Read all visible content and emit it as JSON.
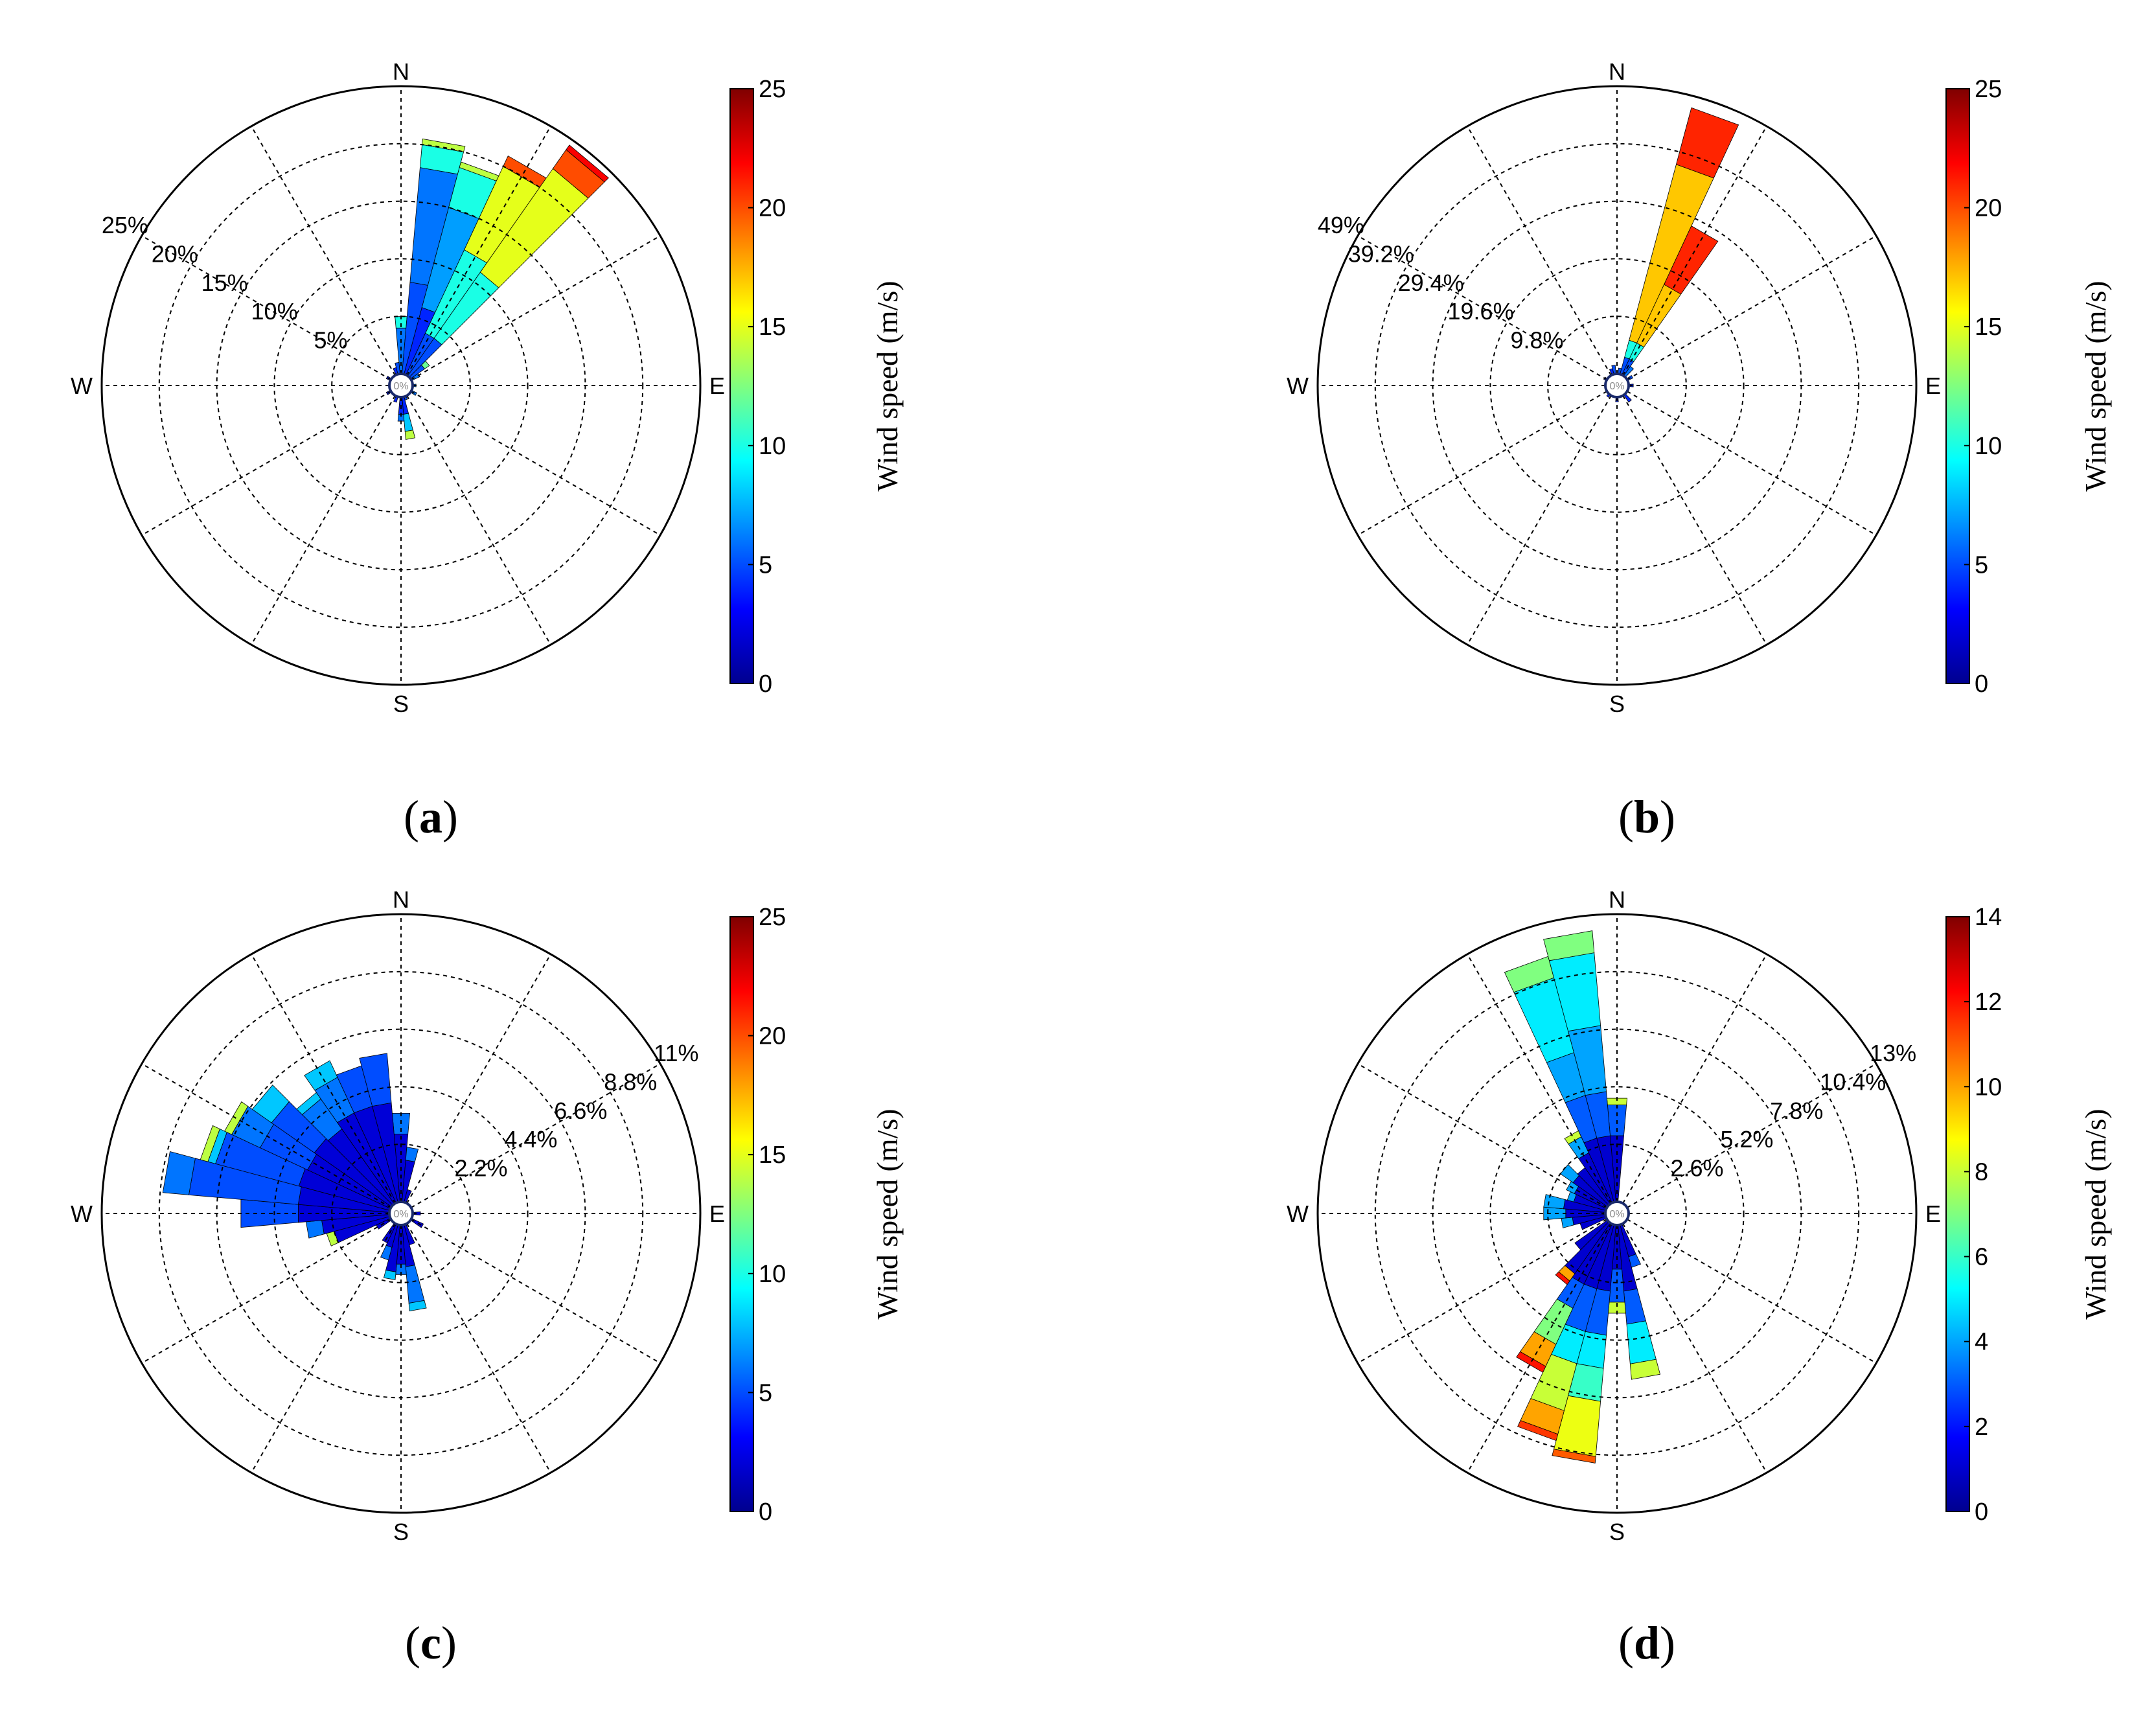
{
  "chart_data": [
    {
      "type": "windrose",
      "panel_label": "a",
      "rings": [
        "5%",
        "10%",
        "15%",
        "20%",
        "25%"
      ],
      "r_max": 25,
      "center_label": "0%",
      "directions": [
        "N",
        "E",
        "S",
        "W"
      ],
      "colorbar": {
        "title": "Wind speed (m/s)",
        "min": 0,
        "max": 25,
        "ticks": [
          "0",
          "5",
          "10",
          "15",
          "20",
          "25"
        ]
      },
      "sectors": [
        {
          "dir": 0,
          "bins": [
            [
              4,
              6
            ],
            [
              1,
              10
            ]
          ]
        },
        {
          "dir": 10,
          "bins": [
            [
              8,
              5
            ],
            [
              10,
              6
            ],
            [
              2,
              10
            ],
            [
              0.5,
              14
            ]
          ]
        },
        {
          "dir": 20,
          "bins": [
            [
              6,
              4
            ],
            [
              9,
              7
            ],
            [
              3.6,
              10
            ],
            [
              0.5,
              14
            ]
          ]
        },
        {
          "dir": 30,
          "bins": [
            [
              4,
              5
            ],
            [
              8,
              10
            ],
            [
              8,
              15
            ],
            [
              1,
              20
            ]
          ]
        },
        {
          "dir": 40,
          "bins": [
            [
              4,
              5
            ],
            [
              7,
              10
            ],
            [
              11,
              15
            ],
            [
              2,
              20
            ],
            [
              0.5,
              22
            ]
          ]
        },
        {
          "dir": 50,
          "bins": [
            [
              1.5,
              5
            ],
            [
              0.5,
              12
            ]
          ]
        },
        {
          "dir": 60,
          "bins": [
            [
              0.8,
              6
            ]
          ]
        },
        {
          "dir": 90,
          "bins": [
            [
              0.3,
              6
            ]
          ]
        },
        {
          "dir": 120,
          "bins": [
            [
              0.5,
              6
            ]
          ]
        },
        {
          "dir": 160,
          "bins": [
            [
              0.3,
              5
            ]
          ]
        },
        {
          "dir": 170,
          "bins": [
            [
              1.5,
              4
            ],
            [
              1.5,
              8
            ],
            [
              0.7,
              14
            ]
          ]
        },
        {
          "dir": 180,
          "bins": [
            [
              1.5,
              4
            ],
            [
              0.6,
              6
            ]
          ]
        },
        {
          "dir": 200,
          "bins": [
            [
              0.5,
              4
            ]
          ]
        },
        {
          "dir": 240,
          "bins": [
            [
              0.4,
              4
            ]
          ]
        },
        {
          "dir": 300,
          "bins": [
            [
              0.4,
              4
            ]
          ]
        },
        {
          "dir": 340,
          "bins": [
            [
              0.6,
              4
            ]
          ]
        },
        {
          "dir": 350,
          "bins": [
            [
              1,
              5
            ]
          ]
        }
      ]
    },
    {
      "type": "windrose",
      "panel_label": "b",
      "rings": [
        "9.8%",
        "19.6%",
        "29.4%",
        "39.2%",
        "49%"
      ],
      "r_max": 49,
      "center_label": "0%",
      "directions": [
        "N",
        "E",
        "S",
        "W"
      ],
      "colorbar": {
        "title": "Wind speed (m/s)",
        "min": 0,
        "max": 25,
        "ticks": [
          "0",
          "5",
          "10",
          "15",
          "20",
          "25"
        ]
      },
      "sectors": [
        {
          "dir": 10,
          "bins": [
            [
              1,
              5
            ]
          ]
        },
        {
          "dir": 20,
          "bins": [
            [
              3,
              5
            ],
            [
              3,
              10
            ],
            [
              31,
              17
            ],
            [
              10,
              21
            ]
          ]
        },
        {
          "dir": 30,
          "bins": [
            [
              3,
              5
            ],
            [
              3,
              10
            ],
            [
              11,
              17
            ],
            [
              11,
              21
            ]
          ]
        },
        {
          "dir": 40,
          "bins": [
            [
              2,
              6
            ]
          ]
        },
        {
          "dir": 60,
          "bins": [
            [
              1,
              5
            ]
          ]
        },
        {
          "dir": 90,
          "bins": [
            [
              0.8,
              4
            ]
          ]
        },
        {
          "dir": 140,
          "bins": [
            [
              1.5,
              4
            ]
          ]
        },
        {
          "dir": 180,
          "bins": [
            [
              0.8,
              4
            ]
          ]
        },
        {
          "dir": 220,
          "bins": [
            [
              0.5,
              4
            ]
          ]
        },
        {
          "dir": 300,
          "bins": [
            [
              0.5,
              4
            ]
          ]
        },
        {
          "dir": 340,
          "bins": [
            [
              1,
              4
            ]
          ]
        },
        {
          "dir": 350,
          "bins": [
            [
              1.5,
              5
            ]
          ]
        }
      ]
    },
    {
      "type": "windrose",
      "panel_label": "c",
      "rings": [
        "2.2%",
        "4.4%",
        "6.6%",
        "8.8%",
        "11%"
      ],
      "r_max": 11,
      "center_label": "0%",
      "directions": [
        "N",
        "E",
        "S",
        "W"
      ],
      "colorbar": {
        "title": "Wind speed (m/s)",
        "min": 0,
        "max": 25,
        "ticks": [
          "0",
          "5",
          "10",
          "15",
          "20",
          "25"
        ]
      },
      "sectors": [
        {
          "dir": 0,
          "bins": [
            [
              2.6,
              2
            ],
            [
              0.8,
              6
            ]
          ]
        },
        {
          "dir": 10,
          "bins": [
            [
              1.6,
              2
            ],
            [
              0.5,
              6
            ]
          ]
        },
        {
          "dir": 20,
          "bins": [
            [
              0.5,
              2
            ]
          ]
        },
        {
          "dir": 90,
          "bins": [
            [
              0.3,
              2
            ]
          ]
        },
        {
          "dir": 120,
          "bins": [
            [
              0.5,
              2
            ]
          ]
        },
        {
          "dir": 160,
          "bins": [
            [
              0.8,
              2
            ]
          ]
        },
        {
          "dir": 170,
          "bins": [
            [
              1.6,
              2
            ],
            [
              1.4,
              6
            ],
            [
              0.3,
              8
            ]
          ]
        },
        {
          "dir": 180,
          "bins": [
            [
              1.5,
              2
            ],
            [
              0.4,
              6
            ]
          ]
        },
        {
          "dir": 190,
          "bins": [
            [
              1.8,
              2
            ],
            [
              0.3,
              8
            ]
          ]
        },
        {
          "dir": 200,
          "bins": [
            [
              0.9,
              2
            ],
            [
              0.5,
              6
            ]
          ]
        },
        {
          "dir": 210,
          "bins": [
            [
              0.8,
              2
            ]
          ]
        },
        {
          "dir": 240,
          "bins": [
            [
              0.6,
              2
            ]
          ]
        },
        {
          "dir": 250,
          "bins": [
            [
              2.2,
              2
            ],
            [
              0.3,
              14
            ]
          ]
        },
        {
          "dir": 260,
          "bins": [
            [
              2.6,
              2
            ],
            [
              0.6,
              6
            ]
          ]
        },
        {
          "dir": 270,
          "bins": [
            [
              3.5,
              2
            ],
            [
              2.2,
              5
            ]
          ]
        },
        {
          "dir": 280,
          "bins": [
            [
              3.5,
              2
            ],
            [
              4.2,
              5
            ],
            [
              1.0,
              6
            ]
          ]
        },
        {
          "dir": 290,
          "bins": [
            [
              3.6,
              2
            ],
            [
              3.3,
              5
            ],
            [
              0.3,
              8
            ],
            [
              0.3,
              14
            ]
          ]
        },
        {
          "dir": 300,
          "bins": [
            [
              3.5,
              2
            ],
            [
              2.0,
              5
            ],
            [
              1.2,
              6
            ],
            [
              0.3,
              14
            ]
          ]
        },
        {
          "dir": 310,
          "bins": [
            [
              3.6,
              2
            ],
            [
              2.0,
              5
            ],
            [
              0.9,
              8
            ]
          ]
        },
        {
          "dir": 320,
          "bins": [
            [
              3.5,
              2
            ],
            [
              1.4,
              6
            ],
            [
              0.3,
              8
            ]
          ]
        },
        {
          "dir": 330,
          "bins": [
            [
              3.8,
              2
            ],
            [
              1.5,
              6
            ],
            [
              0.7,
              8
            ]
          ]
        },
        {
          "dir": 340,
          "bins": [
            [
              3.8,
              2
            ],
            [
              1.6,
              5
            ]
          ]
        },
        {
          "dir": 350,
          "bins": [
            [
              3.8,
              2
            ],
            [
              1.9,
              5
            ]
          ]
        }
      ]
    },
    {
      "type": "windrose",
      "panel_label": "d",
      "rings": [
        "2.6%",
        "5.2%",
        "7.8%",
        "10.4%",
        "13%"
      ],
      "r_max": 13,
      "center_label": "0%",
      "directions": [
        "N",
        "E",
        "S",
        "W"
      ],
      "colorbar": {
        "title": "Wind speed (m/s)",
        "min": 0,
        "max": 14,
        "ticks": [
          "0",
          "2",
          "4",
          "6",
          "8",
          "10",
          "12",
          "14"
        ]
      },
      "sectors": [
        {
          "dir": 0,
          "bins": [
            [
              3,
              1
            ],
            [
              1.4,
              3
            ],
            [
              0.3,
              8
            ]
          ]
        },
        {
          "dir": 160,
          "bins": [
            [
              1.5,
              1
            ],
            [
              0.5,
              3
            ]
          ]
        },
        {
          "dir": 170,
          "bins": [
            [
              3,
              1
            ],
            [
              1.5,
              3
            ],
            [
              1.8,
              5
            ],
            [
              0.7,
              8
            ]
          ]
        },
        {
          "dir": 180,
          "bins": [
            [
              2,
              1
            ],
            [
              1.5,
              3
            ],
            [
              0.5,
              8
            ]
          ]
        },
        {
          "dir": 190,
          "bins": [
            [
              3,
              1
            ],
            [
              2,
              3
            ],
            [
              1.5,
              5
            ],
            [
              1.5,
              6
            ],
            [
              2.5,
              8.5
            ],
            [
              0.3,
              11
            ]
          ]
        },
        {
          "dir": 200,
          "bins": [
            [
              3,
              1
            ],
            [
              2,
              3
            ],
            [
              1.5,
              5
            ],
            [
              2.2,
              8
            ],
            [
              1.1,
              10
            ],
            [
              0.3,
              11.5
            ]
          ]
        },
        {
          "dir": 210,
          "bins": [
            [
              3,
              1
            ],
            [
              1.2,
              3
            ],
            [
              1.8,
              7
            ],
            [
              1.1,
              10
            ],
            [
              0.3,
              12
            ]
          ]
        },
        {
          "dir": 220,
          "bins": [
            [
              2.8,
              1
            ],
            [
              0.4,
              10
            ],
            [
              0.2,
              12
            ]
          ]
        },
        {
          "dir": 230,
          "bins": [
            [
              1.8,
              1
            ]
          ]
        },
        {
          "dir": 250,
          "bins": [
            [
              1.2,
              1
            ]
          ]
        },
        {
          "dir": 260,
          "bins": [
            [
              1.5,
              1
            ],
            [
              0.5,
              4
            ]
          ]
        },
        {
          "dir": 270,
          "bins": [
            [
              1.8,
              1
            ],
            [
              1.0,
              4
            ]
          ]
        },
        {
          "dir": 280,
          "bins": [
            [
              1.9,
              1
            ],
            [
              0.9,
              4
            ]
          ]
        },
        {
          "dir": 290,
          "bins": [
            [
              1.5,
              1
            ],
            [
              0.3,
              4
            ]
          ]
        },
        {
          "dir": 300,
          "bins": [
            [
              1.6,
              1
            ],
            [
              0.4,
              4
            ]
          ]
        },
        {
          "dir": 310,
          "bins": [
            [
              1.9,
              1
            ],
            [
              0.7,
              4
            ]
          ]
        },
        {
          "dir": 320,
          "bins": [
            [
              2.0,
              1
            ]
          ]
        },
        {
          "dir": 330,
          "bins": [
            [
              2.5,
              1
            ],
            [
              0.8,
              4
            ],
            [
              0.3,
              8
            ]
          ]
        },
        {
          "dir": 340,
          "bins": [
            [
              3,
              1
            ],
            [
              2,
              3
            ],
            [
              2,
              4
            ],
            [
              3.5,
              5
            ],
            [
              1,
              7
            ]
          ]
        },
        {
          "dir": 350,
          "bins": [
            [
              3,
              1
            ],
            [
              2,
              3
            ],
            [
              3,
              4
            ],
            [
              3.3,
              5
            ],
            [
              1,
              7
            ]
          ]
        }
      ]
    }
  ]
}
